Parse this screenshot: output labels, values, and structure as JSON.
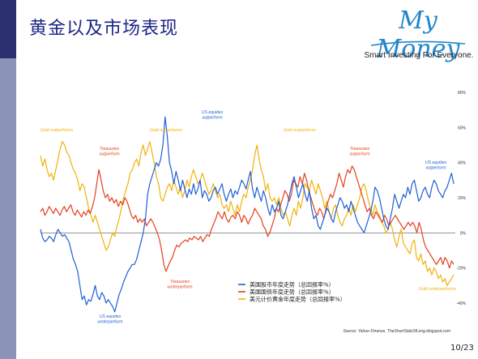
{
  "slide": {
    "title": "黄金以及市场表现",
    "page_number": "10/23"
  },
  "logo": {
    "brand": "My Money",
    "tagline": "Smart Investing For Everyone."
  },
  "colors": {
    "stocks": "#1f5fd6",
    "bonds": "#e3401e",
    "gold": "#f0b20c",
    "title": "#1d2585",
    "sidebar": "#8c93b8",
    "sidebar_top": "#2b3170"
  },
  "chart_data": {
    "type": "line",
    "ylim": [
      -40,
      80
    ],
    "yticks": [
      "80%",
      "60%",
      "40%",
      "20%",
      "0%",
      "-20%",
      "-40%"
    ],
    "ytick_values": [
      80,
      60,
      40,
      20,
      0,
      -20,
      -40
    ],
    "grid": false,
    "legend_position": "bottom-center",
    "source": "Source: Yahoo Finance, TheShortSideOfLong.blogspot.com",
    "series": [
      {
        "name": "美国股市年度走势（总回报率%）",
        "color_key": "stocks",
        "values": [
          2,
          -3,
          -5,
          -4,
          -2,
          -3,
          -5,
          -1,
          2,
          0,
          -2,
          -1,
          -3,
          -5,
          -10,
          -15,
          -18,
          -22,
          -30,
          -38,
          -36,
          -41,
          -38,
          -39,
          -35,
          -30,
          -36,
          -38,
          -34,
          -36,
          -40,
          -38,
          -40,
          -42,
          -45,
          -40,
          -35,
          -32,
          -28,
          -25,
          -22,
          -20,
          -18,
          -18,
          -15,
          -10,
          -5,
          0,
          8,
          22,
          28,
          32,
          36,
          40,
          38,
          42,
          50,
          66,
          55,
          40,
          35,
          28,
          35,
          30,
          24,
          30,
          25,
          20,
          25,
          22,
          28,
          22,
          25,
          30,
          20,
          24,
          22,
          18,
          20,
          24,
          26,
          22,
          25,
          28,
          22,
          18,
          22,
          25,
          20,
          24,
          22,
          26,
          30,
          28,
          25,
          30,
          35,
          25,
          20,
          26,
          22,
          18,
          24,
          20,
          14,
          10,
          16,
          12,
          14,
          18,
          10,
          8,
          12,
          16,
          22,
          28,
          32,
          26,
          20,
          24,
          28,
          22,
          18,
          24,
          14,
          8,
          10,
          4,
          2,
          6,
          10,
          14,
          12,
          8,
          6,
          12,
          16,
          20,
          18,
          14,
          16,
          12,
          18,
          14,
          10,
          6,
          4,
          2,
          0,
          4,
          8,
          12,
          18,
          26,
          24,
          20,
          14,
          8,
          4,
          2,
          8,
          14,
          22,
          18,
          14,
          18,
          22,
          20,
          26,
          22,
          28,
          30,
          24,
          18,
          20,
          24,
          26,
          22,
          20,
          26,
          30,
          28,
          24,
          22,
          20,
          24,
          26,
          30,
          34,
          28
        ]
      },
      {
        "name": "美国国债年度走势（总回报率%）",
        "color_key": "bonds",
        "values": [
          12,
          14,
          10,
          12,
          15,
          13,
          11,
          14,
          12,
          10,
          13,
          15,
          12,
          14,
          16,
          12,
          10,
          13,
          11,
          9,
          12,
          10,
          13,
          11,
          15,
          20,
          28,
          36,
          30,
          24,
          20,
          22,
          18,
          20,
          17,
          19,
          15,
          18,
          16,
          20,
          18,
          14,
          10,
          8,
          10,
          6,
          8,
          6,
          8,
          4,
          6,
          8,
          6,
          3,
          0,
          -4,
          -10,
          -18,
          -22,
          -19,
          -16,
          -14,
          -10,
          -7,
          -8,
          -6,
          -5,
          -4,
          -5,
          -3,
          -4,
          -2,
          -3,
          -4,
          -2,
          -5,
          -3,
          -1,
          -2,
          2,
          5,
          8,
          12,
          10,
          8,
          12,
          8,
          6,
          9,
          10,
          8,
          12,
          10,
          6,
          10,
          8,
          5,
          8,
          10,
          14,
          12,
          10,
          8,
          4,
          2,
          -2,
          0,
          4,
          8,
          14,
          12,
          16,
          20,
          24,
          22,
          18,
          22,
          30,
          28,
          26,
          32,
          28,
          34,
          30,
          24,
          20,
          16,
          12,
          10,
          14,
          12,
          8,
          14,
          18,
          22,
          20,
          24,
          28,
          34,
          30,
          26,
          32,
          36,
          34,
          38,
          36,
          32,
          28,
          24,
          20,
          16,
          12,
          14,
          10,
          8,
          12,
          10,
          8,
          6,
          10,
          8,
          4,
          6,
          8,
          10,
          8,
          6,
          4,
          2,
          4,
          6,
          4,
          6,
          4,
          0,
          6,
          2,
          -4,
          -8,
          -10,
          -12,
          -14,
          -16,
          -18,
          -16,
          -14,
          -18,
          -14,
          -16,
          -20,
          -16,
          -18
        ]
      },
      {
        "name": "美元计价黄金年度走势（总回报率%）",
        "color_key": "gold",
        "values": [
          44,
          38,
          42,
          36,
          32,
          34,
          30,
          36,
          42,
          48,
          52,
          50,
          46,
          44,
          40,
          36,
          34,
          30,
          24,
          28,
          26,
          20,
          14,
          10,
          6,
          10,
          6,
          2,
          -2,
          -6,
          -10,
          -8,
          -4,
          0,
          -2,
          4,
          8,
          14,
          20,
          24,
          28,
          34,
          36,
          40,
          42,
          38,
          46,
          50,
          44,
          48,
          52,
          46,
          40,
          32,
          28,
          20,
          18,
          22,
          26,
          28,
          24,
          30,
          26,
          22,
          26,
          20,
          24,
          30,
          26,
          32,
          36,
          32,
          28,
          30,
          34,
          30,
          26,
          22,
          24,
          28,
          24,
          20,
          22,
          16,
          14,
          16,
          12,
          18,
          14,
          10,
          16,
          12,
          18,
          22,
          20,
          26,
          30,
          36,
          44,
          50,
          42,
          36,
          32,
          24,
          28,
          20,
          18,
          20,
          16,
          20,
          14,
          10,
          12,
          8,
          4,
          10,
          14,
          10,
          18,
          14,
          20,
          28,
          26,
          24,
          30,
          26,
          22,
          28,
          24,
          20,
          14,
          18,
          12,
          8,
          14,
          16,
          10,
          6,
          4,
          8,
          10,
          14,
          10,
          16,
          12,
          16,
          20,
          26,
          28,
          24,
          18,
          14,
          10,
          16,
          12,
          10,
          6,
          4,
          0,
          2,
          6,
          2,
          -4,
          -8,
          -2,
          2,
          -6,
          -8,
          -10,
          -12,
          -6,
          -4,
          -14,
          -16,
          -12,
          -18,
          -16,
          -22,
          -20,
          -24,
          -20,
          -22,
          -26,
          -24,
          -28,
          -26,
          -30,
          -28,
          -26,
          -24
        ]
      }
    ],
    "annotations": [
      {
        "text": "Gold outperforms",
        "color_key": "gold"
      },
      {
        "text": "Treasuries outperform",
        "color_key": "bonds"
      },
      {
        "text": "Gold outperforms",
        "color_key": "gold"
      },
      {
        "text": "US equities outperform",
        "color_key": "stocks"
      },
      {
        "text": "Gold outperforms",
        "color_key": "gold"
      },
      {
        "text": "Treasuries outperform",
        "color_key": "bonds"
      },
      {
        "text": "US equities outperform",
        "color_key": "stocks"
      },
      {
        "text": "Treasuries underperform",
        "color_key": "bonds"
      },
      {
        "text": "US equities underperform",
        "color_key": "stocks"
      },
      {
        "text": "Gold underperforms",
        "color_key": "gold"
      }
    ]
  }
}
